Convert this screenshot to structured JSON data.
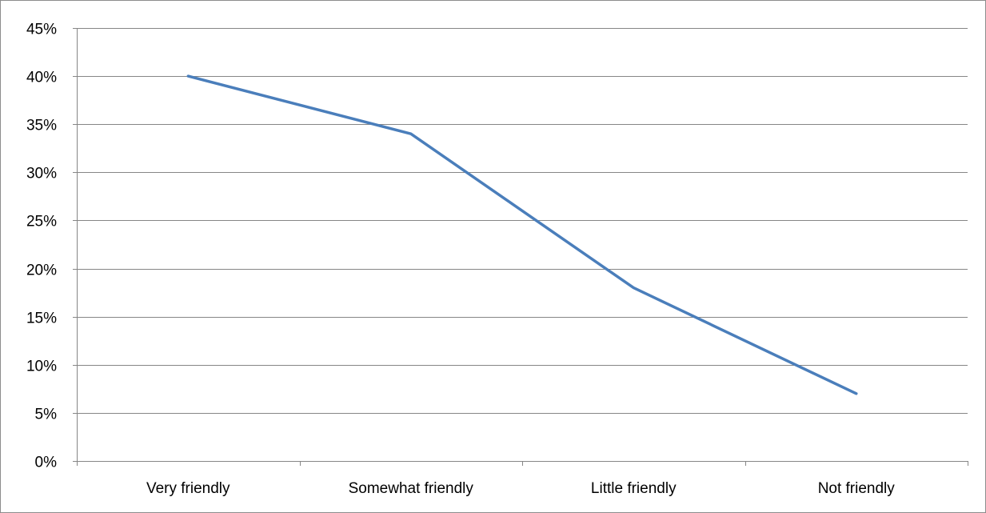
{
  "chart_data": {
    "type": "line",
    "title": "",
    "xlabel": "",
    "ylabel": "",
    "categories": [
      "Very friendly",
      "Somewhat friendly",
      "Little friendly",
      "Not friendly"
    ],
    "series": [
      {
        "values": [
          0.4,
          0.34,
          0.18,
          0.07
        ],
        "color": "#4a7ebb"
      }
    ],
    "ylim": [
      0,
      0.45
    ],
    "y_ticks": [
      0,
      0.05,
      0.1,
      0.15,
      0.2,
      0.25,
      0.3,
      0.35,
      0.4,
      0.45
    ],
    "y_tick_labels": [
      "0%",
      "5%",
      "10%",
      "15%",
      "20%",
      "25%",
      "30%",
      "35%",
      "40%",
      "45%"
    ],
    "grid": true,
    "legend": "none",
    "gridline_color": "#868686"
  }
}
